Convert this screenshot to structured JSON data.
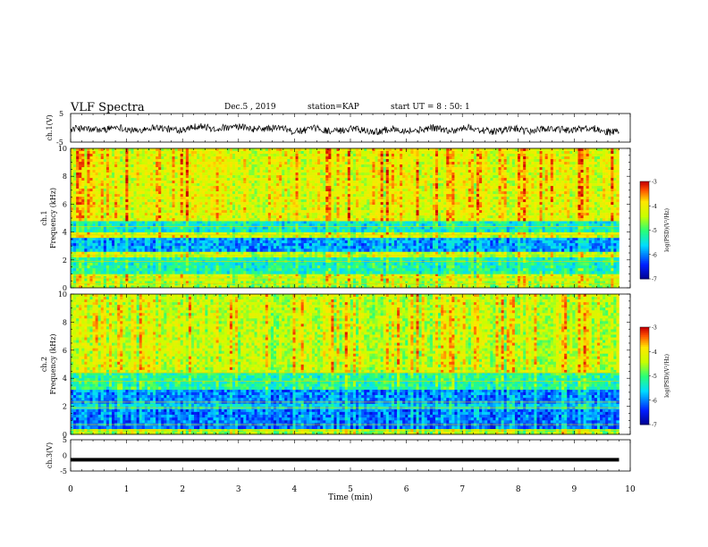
{
  "header": {
    "title": "VLF Spectra",
    "date": "Dec.5 , 2019",
    "station": "station=KAP",
    "start": "start UT = 8 : 50: 1"
  },
  "chart_data": [
    {
      "type": "line",
      "panel": "ch1-waveform",
      "ylabel": "ch.1(V)",
      "ylim": [
        -5,
        5
      ],
      "yticks": [
        "5",
        "-5"
      ],
      "xlim": [
        0,
        10
      ],
      "color": "#000000",
      "description_values": "noisy waveform around 0 V, amplitude roughly -2.5..+1.5 V",
      "x_end": 9.8
    },
    {
      "type": "heatmap",
      "panel": "ch1-spectrogram",
      "ylabel": "ch.1\nFrequency (kHz)",
      "ylim": [
        0,
        10
      ],
      "yticks": [
        "0",
        "2",
        "4",
        "6",
        "8",
        "10"
      ],
      "xlim": [
        0,
        10
      ],
      "x_end": 9.8,
      "colorbar": {
        "label": "log(PSD)(V²/Hz)",
        "range": [
          -7,
          -3
        ],
        "ticks": [
          "-3",
          "-4",
          "-5",
          "-6",
          "-7"
        ]
      },
      "bands": [
        {
          "f": [
            0.0,
            0.5
          ],
          "level": -4.6
        },
        {
          "f": [
            0.5,
            1.0
          ],
          "level": -4.4
        },
        {
          "f": [
            1.0,
            2.2
          ],
          "level": -5.3
        },
        {
          "f": [
            2.2,
            2.6
          ],
          "level": -4.5
        },
        {
          "f": [
            2.6,
            3.6
          ],
          "level": -5.9
        },
        {
          "f": [
            3.6,
            4.0
          ],
          "level": -4.4
        },
        {
          "f": [
            4.0,
            4.8
          ],
          "level": -5.4
        },
        {
          "f": [
            4.8,
            10.0
          ],
          "level": -4.2
        }
      ]
    },
    {
      "type": "heatmap",
      "panel": "ch2-spectrogram",
      "ylabel": "ch.2\nFrequency (kHz)",
      "ylim": [
        0,
        10
      ],
      "yticks": [
        "0",
        "2",
        "4",
        "6",
        "8",
        "10"
      ],
      "xlim": [
        0,
        10
      ],
      "x_end": 9.8,
      "colorbar": {
        "label": "log(PSD)(V²/Hz)",
        "range": [
          -7,
          -3
        ],
        "ticks": [
          "-3",
          "-4",
          "-5",
          "-6",
          "-7"
        ]
      },
      "bands": [
        {
          "f": [
            0.0,
            0.4
          ],
          "level": -4.6
        },
        {
          "f": [
            0.4,
            1.8
          ],
          "level": -6.1
        },
        {
          "f": [
            1.8,
            2.2
          ],
          "level": -5.6
        },
        {
          "f": [
            2.2,
            3.2
          ],
          "level": -6.0
        },
        {
          "f": [
            3.2,
            4.4
          ],
          "level": -5.2
        },
        {
          "f": [
            4.4,
            10.0
          ],
          "level": -4.4
        }
      ]
    },
    {
      "type": "line",
      "panel": "ch3-waveform",
      "ylabel": "ch.3(V)",
      "ylim": [
        -5,
        5
      ],
      "yticks": [
        "5",
        "0",
        "-5"
      ],
      "xlim": [
        0,
        10
      ],
      "x_end": 9.8,
      "constant_value": -1.4,
      "color": "#000000"
    }
  ],
  "xaxis": {
    "label": "Time (min)",
    "ticks": [
      "0",
      "1",
      "2",
      "3",
      "4",
      "5",
      "6",
      "7",
      "8",
      "9",
      "10"
    ]
  }
}
